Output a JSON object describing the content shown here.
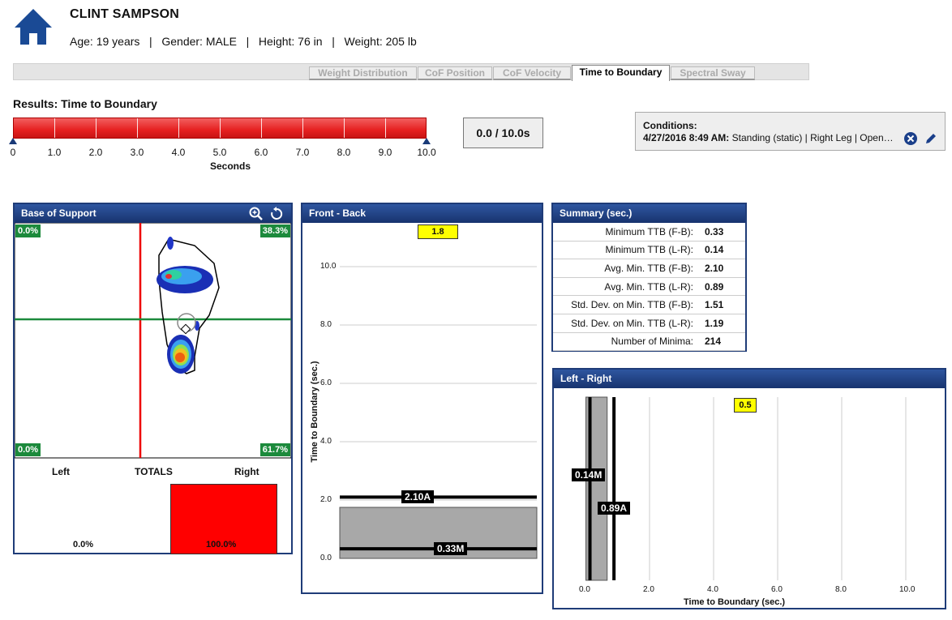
{
  "patient": {
    "name": "CLINT SAMPSON",
    "info": "Age: 19 years   |   Gender: MALE   |   Height: 76 in   |   Weight: 205 lb"
  },
  "tabs": [
    "Weight Distribution",
    "CoF Position",
    "CoF Velocity",
    "Time to Boundary",
    "Spectral Sway"
  ],
  "active_tab": "Time to Boundary",
  "results_title": "Results: Time to Boundary",
  "scale": {
    "labels": [
      "0",
      "1.0",
      "2.0",
      "3.0",
      "4.0",
      "5.0",
      "6.0",
      "7.0",
      "8.0",
      "9.0",
      "10.0"
    ],
    "unit_label": "Seconds",
    "progress_fraction": 1.0
  },
  "time_readout": "0.0 / 10.0s",
  "conditions": {
    "title": "Conditions:",
    "datetime": "4/27/2016 8:49 AM:",
    "desc": "Standing (static) | Right Leg | Open…"
  },
  "base_of_support": {
    "title": "Base of Support",
    "top_left": "0.0%",
    "top_right": "38.3%",
    "bottom_left": "0.0%",
    "bottom_right": "61.7%",
    "left_label": "Left",
    "totals_label": "TOTALS",
    "right_label": "Right",
    "left_value": "0.0%",
    "right_value": "100.0%",
    "right_fraction": 1.0
  },
  "front_back": {
    "title": "Front - Back",
    "badge": "1.8",
    "ylabel": "Time to Boundary (sec.)",
    "yticks": [
      "10.0",
      "8.0",
      "6.0",
      "4.0",
      "2.0",
      "0.0"
    ],
    "avg_label": "2.10A",
    "min_label": "0.33M"
  },
  "summary": {
    "title": "Summary (sec.)",
    "rows": [
      {
        "k": "Minimum TTB (F-B):",
        "v": "0.33"
      },
      {
        "k": "Minimum TTB (L-R):",
        "v": "0.14"
      },
      {
        "k": "Avg. Min. TTB (F-B):",
        "v": "2.10"
      },
      {
        "k": "Avg. Min. TTB (L-R):",
        "v": "0.89"
      },
      {
        "k": "Std. Dev. on Min. TTB (F-B):",
        "v": "1.51"
      },
      {
        "k": "Std. Dev. on Min. TTB (L-R):",
        "v": "1.19"
      },
      {
        "k": "Number of Minima:",
        "v": "214"
      }
    ]
  },
  "left_right": {
    "title": "Left - Right",
    "badge": "0.5",
    "xlabel": "Time to Boundary (sec.)",
    "xticks": [
      "0.0",
      "2.0",
      "4.0",
      "6.0",
      "8.0",
      "10.0"
    ],
    "min_label": "0.14M",
    "avg_label": "0.89A"
  },
  "chart_data": [
    {
      "type": "bar",
      "title": "Front - Back",
      "ylabel": "Time to Boundary (sec.)",
      "ylim": [
        0,
        11
      ],
      "badge_value": 1.8,
      "avg_min_ttb": 2.1,
      "min_ttb": 0.33,
      "gray_band": [
        0.33,
        1.75
      ]
    },
    {
      "type": "bar",
      "title": "Left - Right",
      "xlabel": "Time to Boundary (sec.)",
      "xlim": [
        -0.5,
        11
      ],
      "badge_value": 0.5,
      "min_ttb": 0.14,
      "avg_min_ttb": 0.89,
      "gray_band": [
        0.14,
        0.5
      ]
    }
  ],
  "colors": {
    "header_blue": "#1f3c78",
    "green": "#1c8a3c",
    "red": "#e62020",
    "yellow": "#ffff00"
  }
}
